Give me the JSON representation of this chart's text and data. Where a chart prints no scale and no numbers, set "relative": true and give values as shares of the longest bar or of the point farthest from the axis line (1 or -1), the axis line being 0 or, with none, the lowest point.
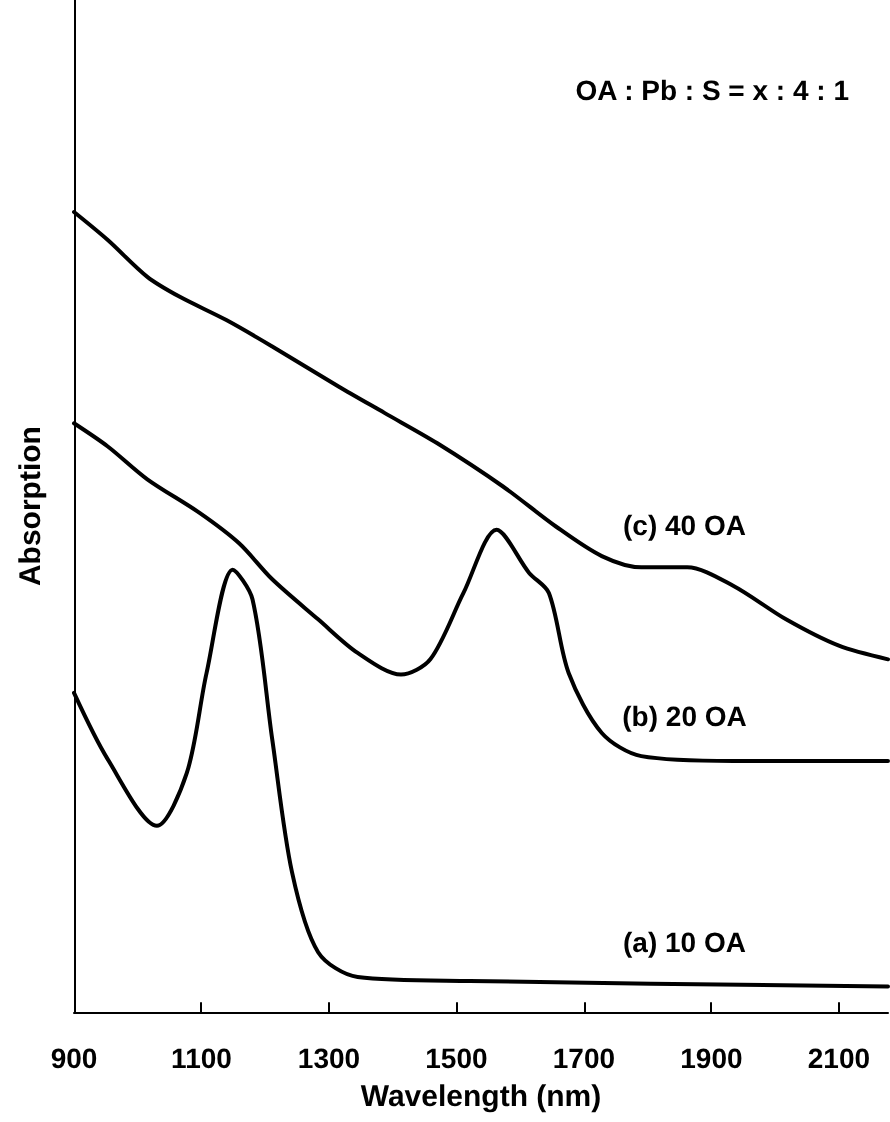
{
  "chart_data": {
    "type": "line",
    "relative": true,
    "xlabel": "Wavelength (nm)",
    "ylabel": "Absorption",
    "annotations": [
      "OA : Pb : S = x : 4 : 1"
    ],
    "xlim": [
      900,
      2177
    ],
    "xticks": [
      900,
      1100,
      1300,
      1500,
      1700,
      1900,
      2100
    ],
    "grid": false,
    "legend": false,
    "marker": "none",
    "line_style": "solid",
    "series": [
      {
        "name": "(a) 10 OA",
        "color": "#000000",
        "x": [
          900,
          953,
          1030,
          1077,
          1108,
          1149,
          1180,
          1211,
          1242,
          1283,
          1345,
          1521,
          2177
        ],
        "values": [
          0.399,
          0.316,
          0.233,
          0.299,
          0.424,
          0.553,
          0.516,
          0.341,
          0.175,
          0.075,
          0.044,
          0.039,
          0.032
        ]
      },
      {
        "name": "(b) 20 OA",
        "color": "#000000",
        "x": [
          900,
          953,
          1015,
          1097,
          1159,
          1211,
          1283,
          1345,
          1413,
          1459,
          1511,
          1563,
          1614,
          1645,
          1676,
          1728,
          1790,
          1934,
          2177
        ],
        "values": [
          0.736,
          0.707,
          0.666,
          0.624,
          0.586,
          0.541,
          0.491,
          0.449,
          0.422,
          0.441,
          0.524,
          0.603,
          0.549,
          0.524,
          0.424,
          0.349,
          0.32,
          0.314,
          0.314
        ]
      },
      {
        "name": "(c) 40 OA",
        "color": "#000000",
        "x": [
          900,
          953,
          1015,
          1066,
          1139,
          1211,
          1315,
          1387,
          1470,
          1573,
          1656,
          1728,
          1790,
          1862,
          1934,
          2017,
          2100,
          2177
        ],
        "values": [
          1,
          0.965,
          0.919,
          0.894,
          0.865,
          0.832,
          0.782,
          0.749,
          0.711,
          0.657,
          0.607,
          0.57,
          0.556,
          0.556,
          0.533,
          0.491,
          0.458,
          0.441
        ]
      }
    ]
  }
}
